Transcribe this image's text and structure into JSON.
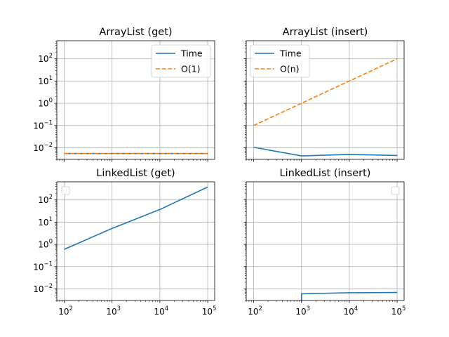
{
  "chart_data": [
    {
      "type": "line",
      "title": "ArrayList (get)",
      "x_scale": "log",
      "y_scale": "log",
      "xlim": [
        70,
        140000
      ],
      "ylim": [
        0.003,
        650
      ],
      "grid": true,
      "legend": "upper right",
      "series": [
        {
          "name": "Time",
          "x": [
            100,
            1000,
            10000,
            100000
          ],
          "y": [
            0.0055,
            0.0055,
            0.0055,
            0.0055
          ],
          "color": "#1f77b4",
          "dash": "solid"
        },
        {
          "name": "O(1)",
          "x": [
            100,
            1000,
            10000,
            100000
          ],
          "y": [
            0.0055,
            0.0055,
            0.0055,
            0.0055
          ],
          "color": "#ff7f0e",
          "dash": "dashed"
        }
      ]
    },
    {
      "type": "line",
      "title": "ArrayList (insert)",
      "x_scale": "log",
      "y_scale": "log",
      "xlim": [
        70,
        140000
      ],
      "ylim": [
        0.003,
        650
      ],
      "grid": true,
      "legend": "upper left",
      "series": [
        {
          "name": "Time",
          "x": [
            100,
            1000,
            10000,
            100000
          ],
          "y": [
            0.0105,
            0.0043,
            0.005,
            0.0045
          ],
          "color": "#1f77b4",
          "dash": "solid"
        },
        {
          "name": "O(n)",
          "x": [
            100,
            1000,
            10000,
            100000
          ],
          "y": [
            0.1,
            1,
            10,
            100
          ],
          "color": "#ff7f0e",
          "dash": "dashed"
        }
      ]
    },
    {
      "type": "line",
      "title": "LinkedList (get)",
      "x_scale": "log",
      "y_scale": "log",
      "xlim": [
        70,
        140000
      ],
      "ylim": [
        0.003,
        650
      ],
      "grid": true,
      "legend": "upper left (empty)",
      "series": [
        {
          "x": [
            100,
            1000,
            10000,
            100000
          ],
          "y": [
            0.6,
            5.2,
            37,
            380
          ],
          "color": "#1f77b4",
          "dash": "solid"
        }
      ]
    },
    {
      "type": "line",
      "title": "LinkedList (insert)",
      "x_scale": "log",
      "y_scale": "log",
      "xlim": [
        70,
        140000
      ],
      "ylim": [
        0.003,
        650
      ],
      "grid": true,
      "legend": "upper right (empty)",
      "series": [
        {
          "x": [
            1000,
            1000,
            10000,
            100000
          ],
          "y": [
            0.001,
            0.006,
            0.0067,
            0.0069
          ],
          "color": "#1f77b4",
          "dash": "solid"
        }
      ]
    }
  ],
  "tick_labels": {
    "x": [
      {
        "base": "10",
        "exp": "2"
      },
      {
        "base": "10",
        "exp": "3"
      },
      {
        "base": "10",
        "exp": "4"
      },
      {
        "base": "10",
        "exp": "5"
      }
    ],
    "y": [
      {
        "base": "10",
        "exp": "2"
      },
      {
        "base": "10",
        "exp": "1"
      },
      {
        "base": "10",
        "exp": "0"
      },
      {
        "base": "10",
        "exp": "−1"
      },
      {
        "base": "10",
        "exp": "−2"
      }
    ]
  }
}
